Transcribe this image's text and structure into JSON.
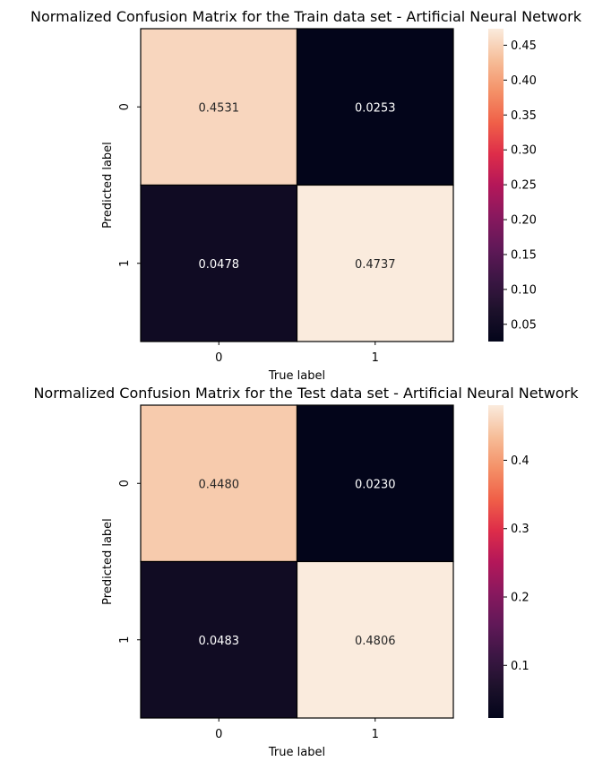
{
  "chart_data": [
    {
      "type": "heatmap",
      "title": "Normalized Confusion Matrix for the Train data set - Artificial Neural Network",
      "xlabel": "True label",
      "ylabel": "Predicted label",
      "x_categories": [
        "0",
        "1"
      ],
      "y_categories": [
        "0",
        "1"
      ],
      "values": [
        [
          0.4531,
          0.0253
        ],
        [
          0.0478,
          0.4737
        ]
      ],
      "cell_labels": [
        [
          "0.4531",
          "0.0253"
        ],
        [
          "0.0478",
          "0.4737"
        ]
      ],
      "colorbar": {
        "range": [
          0.0253,
          0.4737
        ],
        "ticks": [
          0.05,
          0.1,
          0.15,
          0.2,
          0.25,
          0.3,
          0.35,
          0.4,
          0.45
        ],
        "tick_labels": [
          "0.05",
          "0.10",
          "0.15",
          "0.20",
          "0.25",
          "0.30",
          "0.35",
          "0.40",
          "0.45"
        ]
      },
      "colormap": "rocket",
      "cell_border_color": "#000000"
    },
    {
      "type": "heatmap",
      "title": "Normalized Confusion Matrix for the Test data set - Artificial Neural Network",
      "xlabel": "True label",
      "ylabel": "Predicted label",
      "x_categories": [
        "0",
        "1"
      ],
      "y_categories": [
        "0",
        "1"
      ],
      "values": [
        [
          0.448,
          0.023
        ],
        [
          0.0483,
          0.4806
        ]
      ],
      "cell_labels": [
        [
          "0.4480",
          "0.0230"
        ],
        [
          "0.0483",
          "0.4806"
        ]
      ],
      "colorbar": {
        "range": [
          0.023,
          0.4806
        ],
        "ticks": [
          0.1,
          0.2,
          0.3,
          0.4
        ],
        "tick_labels": [
          "0.1",
          "0.2",
          "0.3",
          "0.4"
        ]
      },
      "colormap": "rocket",
      "cell_border_color": "#000000"
    }
  ]
}
